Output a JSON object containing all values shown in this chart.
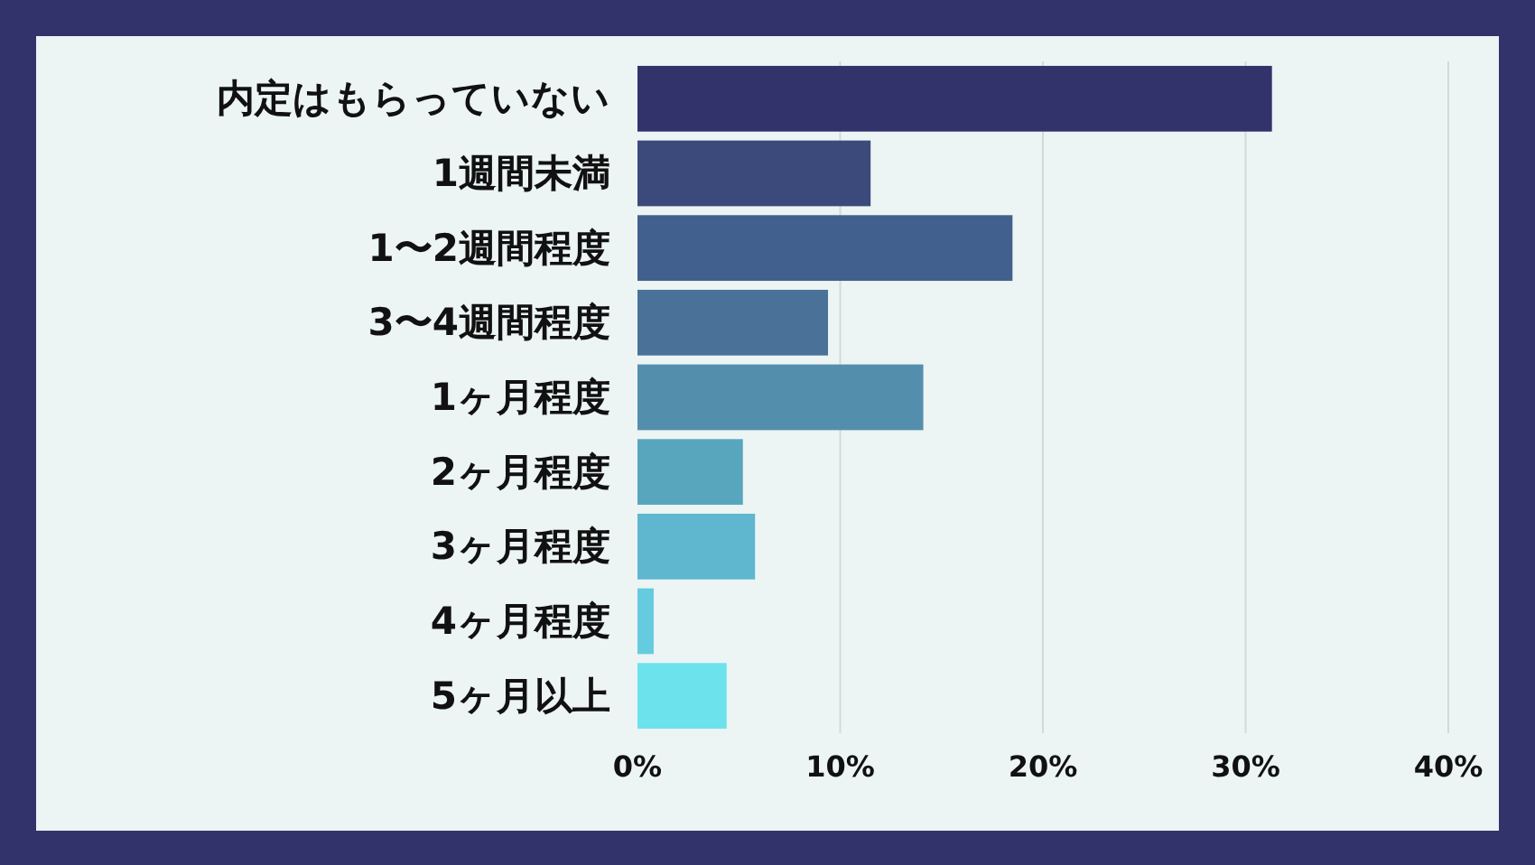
{
  "chart_data": {
    "type": "bar",
    "orientation": "horizontal",
    "categories": [
      "内定はもらっていない",
      "1週間未満",
      "1〜2週間程度",
      "3〜4週間程度",
      "1ヶ月程度",
      "2ヶ月程度",
      "3ヶ月程度",
      "4ヶ月程度",
      "5ヶ月以上"
    ],
    "values": [
      31.3,
      11.5,
      18.5,
      9.4,
      14.1,
      5.2,
      5.8,
      0.8,
      4.4
    ],
    "colors": [
      "#33336b",
      "#3b4a7a",
      "#42608e",
      "#4a7299",
      "#548ead",
      "#58a6bd",
      "#5fb6cf",
      "#65cbdf",
      "#6ce3ec"
    ],
    "xlim": [
      0,
      40
    ],
    "xticks": [
      {
        "value": 0,
        "label": "0%"
      },
      {
        "value": 10,
        "label": "10%"
      },
      {
        "value": 20,
        "label": "20%"
      },
      {
        "value": 30,
        "label": "30%"
      },
      {
        "value": 40,
        "label": "40%"
      }
    ],
    "grid": "x"
  }
}
